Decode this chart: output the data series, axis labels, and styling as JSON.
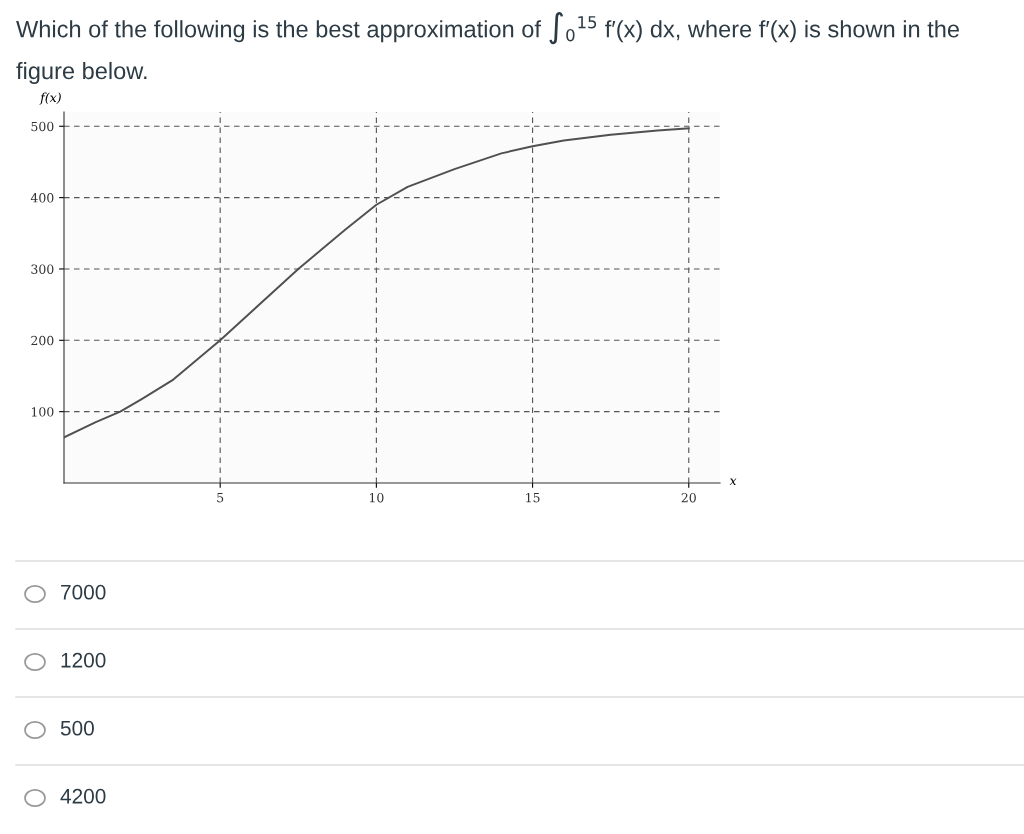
{
  "chart_data": {
    "type": "line",
    "title": "Which of the following is the best approximation of ∫$_{0}$$^{15}$ f′(x) dx, where f′(x) is shown in the figure below.",
    "xlabel": "x",
    "ylabel": "f(x)",
    "x": [
      0,
      1,
      1.8,
      2.5,
      3.5,
      5,
      6,
      7.5,
      9,
      10,
      11,
      12.5,
      14,
      15,
      16,
      17.5,
      19,
      20
    ],
    "series": [
      {
        "color": "#505050",
        "values": [
          64,
          85,
          100,
          118,
          145,
          200,
          240,
          300,
          355,
          390,
          415,
          440,
          462,
          472,
          480,
          488,
          494,
          497
        ]
      }
    ],
    "xlim": [
      0,
      21
    ],
    "ylim": [
      0,
      520
    ],
    "xticks": [
      5,
      10,
      15,
      20
    ],
    "yticks": [
      100,
      200,
      300,
      400,
      500
    ],
    "grid": true,
    "line_style": "solid",
    "marker": "none",
    "annotations": [
      "7000",
      "1200",
      "500",
      "4200"
    ]
  }
}
